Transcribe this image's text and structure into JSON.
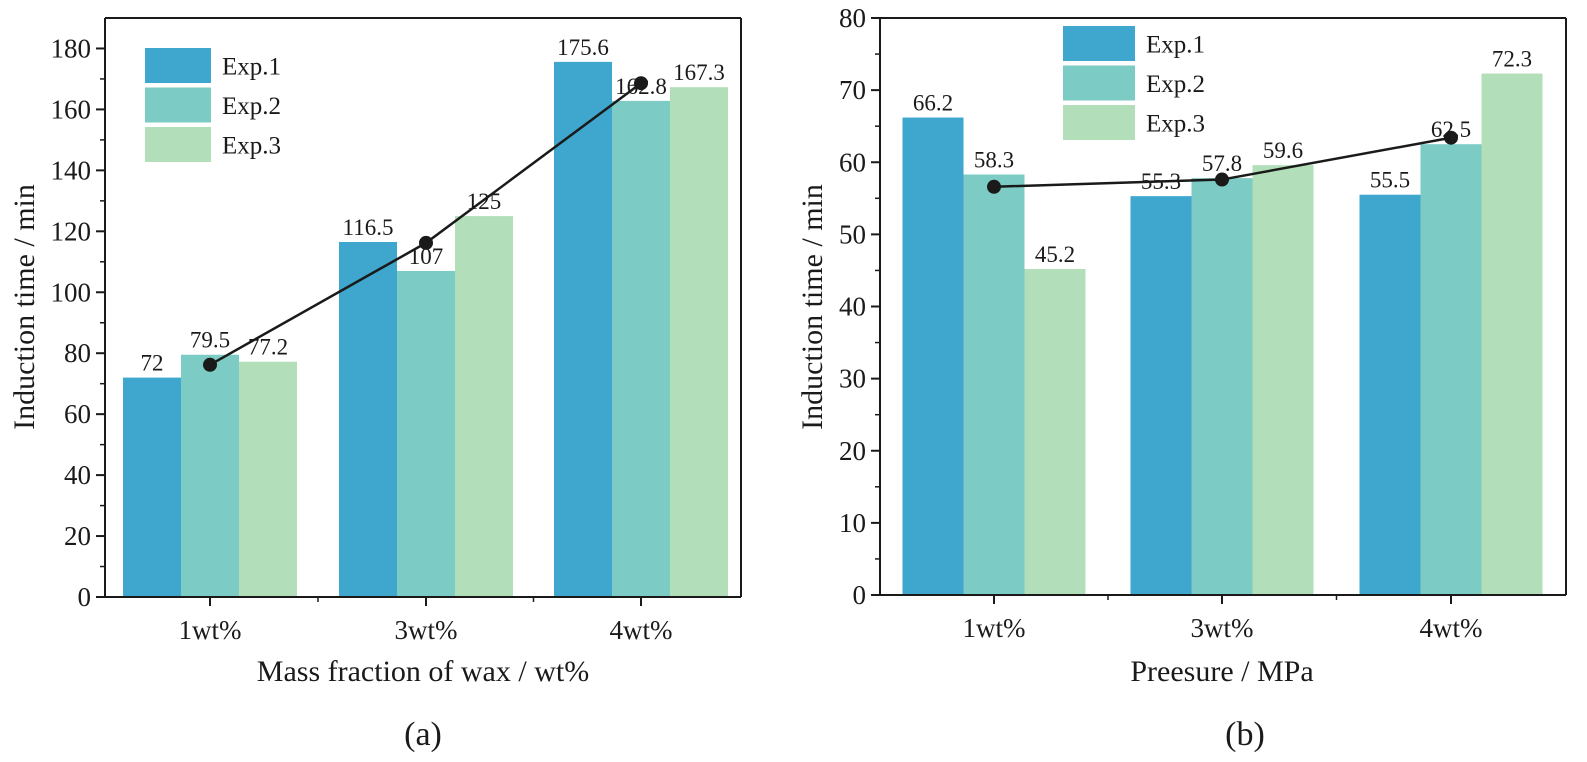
{
  "colors": {
    "exp1": "#3fa6ce",
    "exp2": "#7ccbc4",
    "exp3": "#b2dfb9",
    "axis": "#1a1a1a",
    "line": "#1a1a1a"
  },
  "chart_data": [
    {
      "id": "a",
      "type": "bar",
      "caption": "(a)",
      "xlabel": "Mass fraction of wax / wt%",
      "ylabel": "Induction time / min",
      "ylim": [
        0,
        190
      ],
      "yticks": [
        0,
        20,
        40,
        60,
        80,
        100,
        120,
        140,
        160,
        180
      ],
      "categories": [
        "1wt%",
        "3wt%",
        "4wt%"
      ],
      "series": [
        {
          "name": "Exp.1",
          "values": [
            72,
            116.5,
            175.6
          ],
          "labels": [
            "72",
            "116.5",
            "175.6"
          ]
        },
        {
          "name": "Exp.2",
          "values": [
            79.5,
            107,
            162.8
          ],
          "labels": [
            "79.5",
            "107",
            "162.8"
          ]
        },
        {
          "name": "Exp.3",
          "values": [
            77.2,
            125,
            167.3
          ],
          "labels": [
            "77.2",
            "125",
            "167.3"
          ]
        }
      ],
      "mean_line": [
        76.2,
        116.2,
        168.6
      ],
      "legend_position": "top-left"
    },
    {
      "id": "b",
      "type": "bar",
      "caption": "(b)",
      "xlabel": "Preesure / MPa",
      "ylabel": "Induction time / min",
      "ylim": [
        0,
        80
      ],
      "yticks": [
        0,
        10,
        20,
        30,
        40,
        50,
        60,
        70,
        80
      ],
      "categories": [
        "1wt%",
        "3wt%",
        "4wt%"
      ],
      "series": [
        {
          "name": "Exp.1",
          "values": [
            66.2,
            55.3,
            55.5
          ],
          "labels": [
            "66.2",
            "55.3",
            "55.5"
          ]
        },
        {
          "name": "Exp.2",
          "values": [
            58.3,
            57.8,
            62.5
          ],
          "labels": [
            "58.3",
            "57.8",
            "62.5"
          ]
        },
        {
          "name": "Exp.3",
          "values": [
            45.2,
            59.6,
            72.3
          ],
          "labels": [
            "45.2",
            "59.6",
            "72.3"
          ]
        }
      ],
      "mean_line": [
        56.6,
        57.6,
        63.4
      ],
      "legend_position": "top-left"
    }
  ]
}
